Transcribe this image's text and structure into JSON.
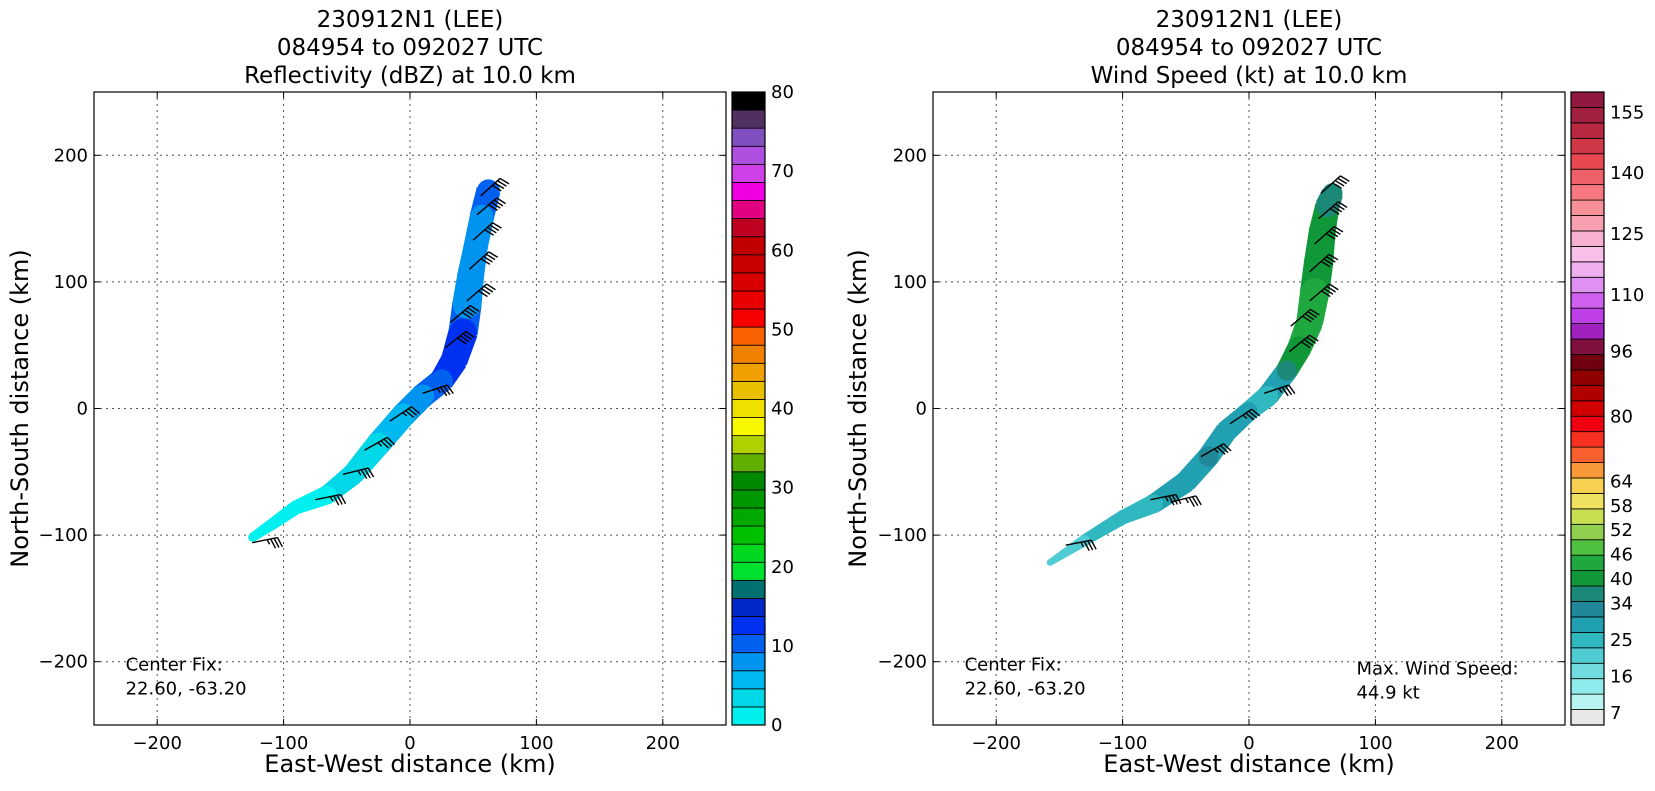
{
  "chart_data": [
    {
      "type": "heatmap",
      "title_lines": [
        "230912N1 (LEE)",
        "084954 to 092027 UTC",
        "Reflectivity (dBZ) at 10.0 km"
      ],
      "xlabel": "East-West distance (km)",
      "ylabel": "North-South distance (km)",
      "xlim": [
        -250,
        250
      ],
      "ylim": [
        -250,
        250
      ],
      "xticks": [
        -200,
        -100,
        0,
        100,
        200
      ],
      "yticks": [
        -200,
        -100,
        0,
        100,
        200
      ],
      "xtick_labels": [
        "−200",
        "−100",
        "0",
        "100",
        "200"
      ],
      "ytick_labels": [
        "−200",
        "−100",
        "0",
        "100",
        "200"
      ],
      "grid": true,
      "annotations": [
        {
          "text_lines": [
            "Center Fix:",
            "22.60, -63.20"
          ],
          "x": -225,
          "y": -207
        }
      ],
      "colorbar": {
        "min": 0,
        "max": 80,
        "tick_values": [
          0,
          10,
          20,
          30,
          40,
          50,
          60,
          70,
          80
        ],
        "tick_labels": [
          "0",
          "10",
          "20",
          "30",
          "40",
          "50",
          "60",
          "70",
          "80"
        ],
        "colors": [
          "#00f0f0",
          "#00d8e8",
          "#00b8f0",
          "#0094f0",
          "#0060f0",
          "#0030f0",
          "#0028c8",
          "#007070",
          "#00e030",
          "#00d820",
          "#00c000",
          "#00a800",
          "#009800",
          "#008800",
          "#60b000",
          "#b0d000",
          "#f8f800",
          "#f0e000",
          "#e8c000",
          "#f0a000",
          "#f08000",
          "#f86000",
          "#f80000",
          "#e80000",
          "#d80000",
          "#c80000",
          "#c00000",
          "#c00020",
          "#e00080",
          "#f000e0",
          "#d040e8",
          "#b050e0",
          "#8050c0",
          "#503060",
          "#000000"
        ]
      },
      "echo_band": {
        "centerline": [
          [
            -125,
            -102
          ],
          [
            -110,
            -92
          ],
          [
            -90,
            -78
          ],
          [
            -65,
            -68
          ],
          [
            -45,
            -52
          ],
          [
            -25,
            -28
          ],
          [
            -5,
            -5
          ],
          [
            10,
            10
          ],
          [
            25,
            22
          ],
          [
            35,
            38
          ],
          [
            42,
            60
          ],
          [
            45,
            82
          ],
          [
            48,
            105
          ],
          [
            52,
            128
          ],
          [
            57,
            152
          ],
          [
            62,
            172
          ]
        ],
        "half_width_km": [
          3,
          4,
          5,
          7,
          8,
          9,
          9,
          9,
          9,
          10,
          11,
          11,
          10,
          9,
          9,
          9
        ],
        "values_dbz": [
          1,
          1,
          2,
          2,
          3,
          4,
          6,
          9,
          11,
          12,
          13,
          9,
          8,
          8,
          9,
          11
        ]
      },
      "wind_barbs": [
        {
          "x": -125,
          "y": -106,
          "u": -20,
          "v": -4,
          "speed_kt": 35
        },
        {
          "x": -75,
          "y": -72,
          "u": -20,
          "v": -4,
          "speed_kt": 35
        },
        {
          "x": -53,
          "y": -52,
          "u": -20,
          "v": -5,
          "speed_kt": 35
        },
        {
          "x": -36,
          "y": -33,
          "u": -21,
          "v": -12,
          "speed_kt": 35
        },
        {
          "x": -16,
          "y": -10,
          "u": -21,
          "v": -14,
          "speed_kt": 35
        },
        {
          "x": 10,
          "y": 12,
          "u": -21,
          "v": -7,
          "speed_kt": 35
        },
        {
          "x": 28,
          "y": 48,
          "u": -21,
          "v": -17,
          "speed_kt": 40
        },
        {
          "x": 32,
          "y": 68,
          "u": -20,
          "v": -17,
          "speed_kt": 40
        },
        {
          "x": 45,
          "y": 85,
          "u": -20,
          "v": -17,
          "speed_kt": 40
        },
        {
          "x": 47,
          "y": 110,
          "u": -20,
          "v": -18,
          "speed_kt": 40
        },
        {
          "x": 50,
          "y": 133,
          "u": -20,
          "v": -18,
          "speed_kt": 40
        },
        {
          "x": 53,
          "y": 153,
          "u": -20,
          "v": -17,
          "speed_kt": 40
        },
        {
          "x": 56,
          "y": 168,
          "u": -20,
          "v": -18,
          "speed_kt": 40
        }
      ]
    },
    {
      "type": "heatmap",
      "title_lines": [
        "230912N1 (LEE)",
        "084954 to 092027 UTC",
        "Wind Speed (kt) at 10.0 km"
      ],
      "xlabel": "East-West distance (km)",
      "ylabel": "North-South distance (km)",
      "xlim": [
        -250,
        250
      ],
      "ylim": [
        -250,
        250
      ],
      "xticks": [
        -200,
        -100,
        0,
        100,
        200
      ],
      "yticks": [
        -200,
        -100,
        0,
        100,
        200
      ],
      "xtick_labels": [
        "−200",
        "−100",
        "0",
        "100",
        "200"
      ],
      "ytick_labels": [
        "−200",
        "−100",
        "0",
        "100",
        "200"
      ],
      "grid": true,
      "annotations": [
        {
          "text_lines": [
            "Center Fix:",
            "22.60, -63.20"
          ],
          "x": -225,
          "y": -207
        },
        {
          "text_lines": [
            "Max. Wind Speed:",
            "44.9 kt"
          ],
          "x": 85,
          "y": -210
        }
      ],
      "colorbar": {
        "min": 4,
        "max": 160,
        "tick_values": [
          7,
          16,
          25,
          34,
          40,
          46,
          52,
          58,
          64,
          80,
          96,
          110,
          125,
          140,
          155
        ],
        "tick_labels": [
          "7",
          "16",
          "25",
          "34",
          "40",
          "46",
          "52",
          "58",
          "64",
          "80",
          "96",
          "110",
          "125",
          "140",
          "155"
        ],
        "colors": [
          "#e8e8e8",
          "#b8f4f0",
          "#90ecec",
          "#70dce0",
          "#50ccd4",
          "#30b8c0",
          "#20a0b0",
          "#208898",
          "#1c8878",
          "#109838",
          "#20a840",
          "#50c040",
          "#90d050",
          "#c8e050",
          "#f0e060",
          "#f8d050",
          "#f89838",
          "#f86030",
          "#f83020",
          "#f00010",
          "#d00000",
          "#b00000",
          "#900000",
          "#700010",
          "#801040",
          "#a020c0",
          "#c040e8",
          "#d060f0",
          "#e090f0",
          "#f0b0f0",
          "#f8c0e8",
          "#f8b0d0",
          "#f8a0b0",
          "#f89098",
          "#f87880",
          "#f06068",
          "#e84850",
          "#d03848",
          "#b82840",
          "#a02040",
          "#901840"
        ]
      },
      "echo_band": {
        "centerline": [
          [
            -158,
            -122
          ],
          [
            -130,
            -104
          ],
          [
            -100,
            -86
          ],
          [
            -75,
            -75
          ],
          [
            -50,
            -58
          ],
          [
            -32,
            -38
          ],
          [
            -18,
            -18
          ],
          [
            0,
            -2
          ],
          [
            15,
            10
          ],
          [
            30,
            30
          ],
          [
            40,
            48
          ],
          [
            48,
            68
          ],
          [
            52,
            92
          ],
          [
            55,
            115
          ],
          [
            58,
            140
          ],
          [
            62,
            160
          ],
          [
            66,
            170
          ]
        ],
        "half_width_km": [
          2,
          4,
          5,
          7,
          8,
          8,
          8,
          7,
          8,
          8,
          9,
          10,
          11,
          11,
          10,
          9,
          8
        ],
        "values_kt": [
          22,
          23,
          24,
          25,
          29,
          31,
          30,
          27,
          26,
          35,
          42,
          44,
          43,
          41,
          39,
          38,
          38
        ]
      },
      "wind_barbs": [
        {
          "x": -145,
          "y": -108,
          "u": -20,
          "v": -4,
          "speed_kt": 35
        },
        {
          "x": -78,
          "y": -72,
          "u": -20,
          "v": -4,
          "speed_kt": 35
        },
        {
          "x": -62,
          "y": -74,
          "u": -20,
          "v": -5,
          "speed_kt": 35
        },
        {
          "x": -38,
          "y": -38,
          "u": -21,
          "v": -12,
          "speed_kt": 35
        },
        {
          "x": -15,
          "y": -12,
          "u": -21,
          "v": -14,
          "speed_kt": 35
        },
        {
          "x": 12,
          "y": 12,
          "u": -21,
          "v": -7,
          "speed_kt": 35
        },
        {
          "x": 32,
          "y": 45,
          "u": -21,
          "v": -17,
          "speed_kt": 40
        },
        {
          "x": 33,
          "y": 65,
          "u": -20,
          "v": -17,
          "speed_kt": 40
        },
        {
          "x": 48,
          "y": 85,
          "u": -20,
          "v": -17,
          "speed_kt": 40
        },
        {
          "x": 48,
          "y": 108,
          "u": -20,
          "v": -18,
          "speed_kt": 40
        },
        {
          "x": 52,
          "y": 130,
          "u": -20,
          "v": -18,
          "speed_kt": 40
        },
        {
          "x": 55,
          "y": 150,
          "u": -20,
          "v": -17,
          "speed_kt": 40
        },
        {
          "x": 57,
          "y": 170,
          "u": -20,
          "v": -18,
          "speed_kt": 40
        }
      ]
    }
  ]
}
